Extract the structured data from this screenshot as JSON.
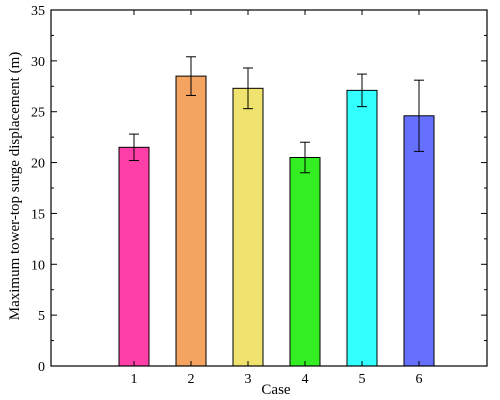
{
  "chart_data": {
    "type": "bar",
    "title": "",
    "xlabel": "Case",
    "ylabel": "Maximum tower-top surge displacement (m)",
    "categories": [
      "1",
      "2",
      "3",
      "4",
      "5",
      "6"
    ],
    "values": [
      21.5,
      28.5,
      27.3,
      20.5,
      27.1,
      24.6
    ],
    "errors": [
      1.3,
      1.9,
      2.0,
      1.5,
      1.6,
      3.5
    ],
    "colors": [
      "#ff3fa8",
      "#f4a460",
      "#f0e26e",
      "#33ee22",
      "#33ffff",
      "#6670ff"
    ],
    "ylim": [
      0,
      35
    ],
    "yticks": [
      0,
      5,
      10,
      15,
      20,
      25,
      30,
      35
    ],
    "grid": false,
    "legend": "none"
  }
}
